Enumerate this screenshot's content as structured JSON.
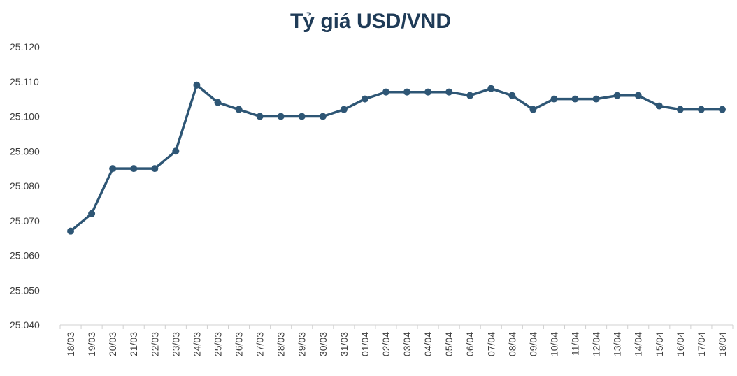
{
  "chart_data": {
    "type": "line",
    "title": "Tỷ giá USD/VND",
    "xlabel": "",
    "ylabel": "",
    "ylim": [
      25040,
      25120
    ],
    "y_ticks": [
      25040,
      25050,
      25060,
      25070,
      25080,
      25090,
      25100,
      25110,
      25120
    ],
    "y_tick_labels": [
      "25.040",
      "25.050",
      "25.060",
      "25.070",
      "25.080",
      "25.090",
      "25.100",
      "25.110",
      "25.120"
    ],
    "grid": false,
    "legend": "none",
    "categories": [
      "18/03",
      "19/03",
      "20/03",
      "21/03",
      "22/03",
      "23/03",
      "24/03",
      "25/03",
      "26/03",
      "27/03",
      "28/03",
      "29/03",
      "30/03",
      "31/03",
      "01/04",
      "02/04",
      "03/04",
      "04/04",
      "05/04",
      "06/04",
      "07/04",
      "08/04",
      "09/04",
      "10/04",
      "11/04",
      "12/04",
      "13/04",
      "14/04",
      "15/04",
      "16/04",
      "17/04",
      "18/04"
    ],
    "series": [
      {
        "color": "#2e5675",
        "values": [
          25067,
          25072,
          25085,
          25085,
          25085,
          25090,
          25109,
          25104,
          25102,
          25100,
          25100,
          25100,
          25100,
          25102,
          25105,
          25107,
          25107,
          25107,
          25107,
          25106,
          25108,
          25106,
          25102,
          25105,
          25105,
          25105,
          25106,
          25106,
          25103,
          25102,
          25102,
          25102
        ]
      }
    ]
  }
}
